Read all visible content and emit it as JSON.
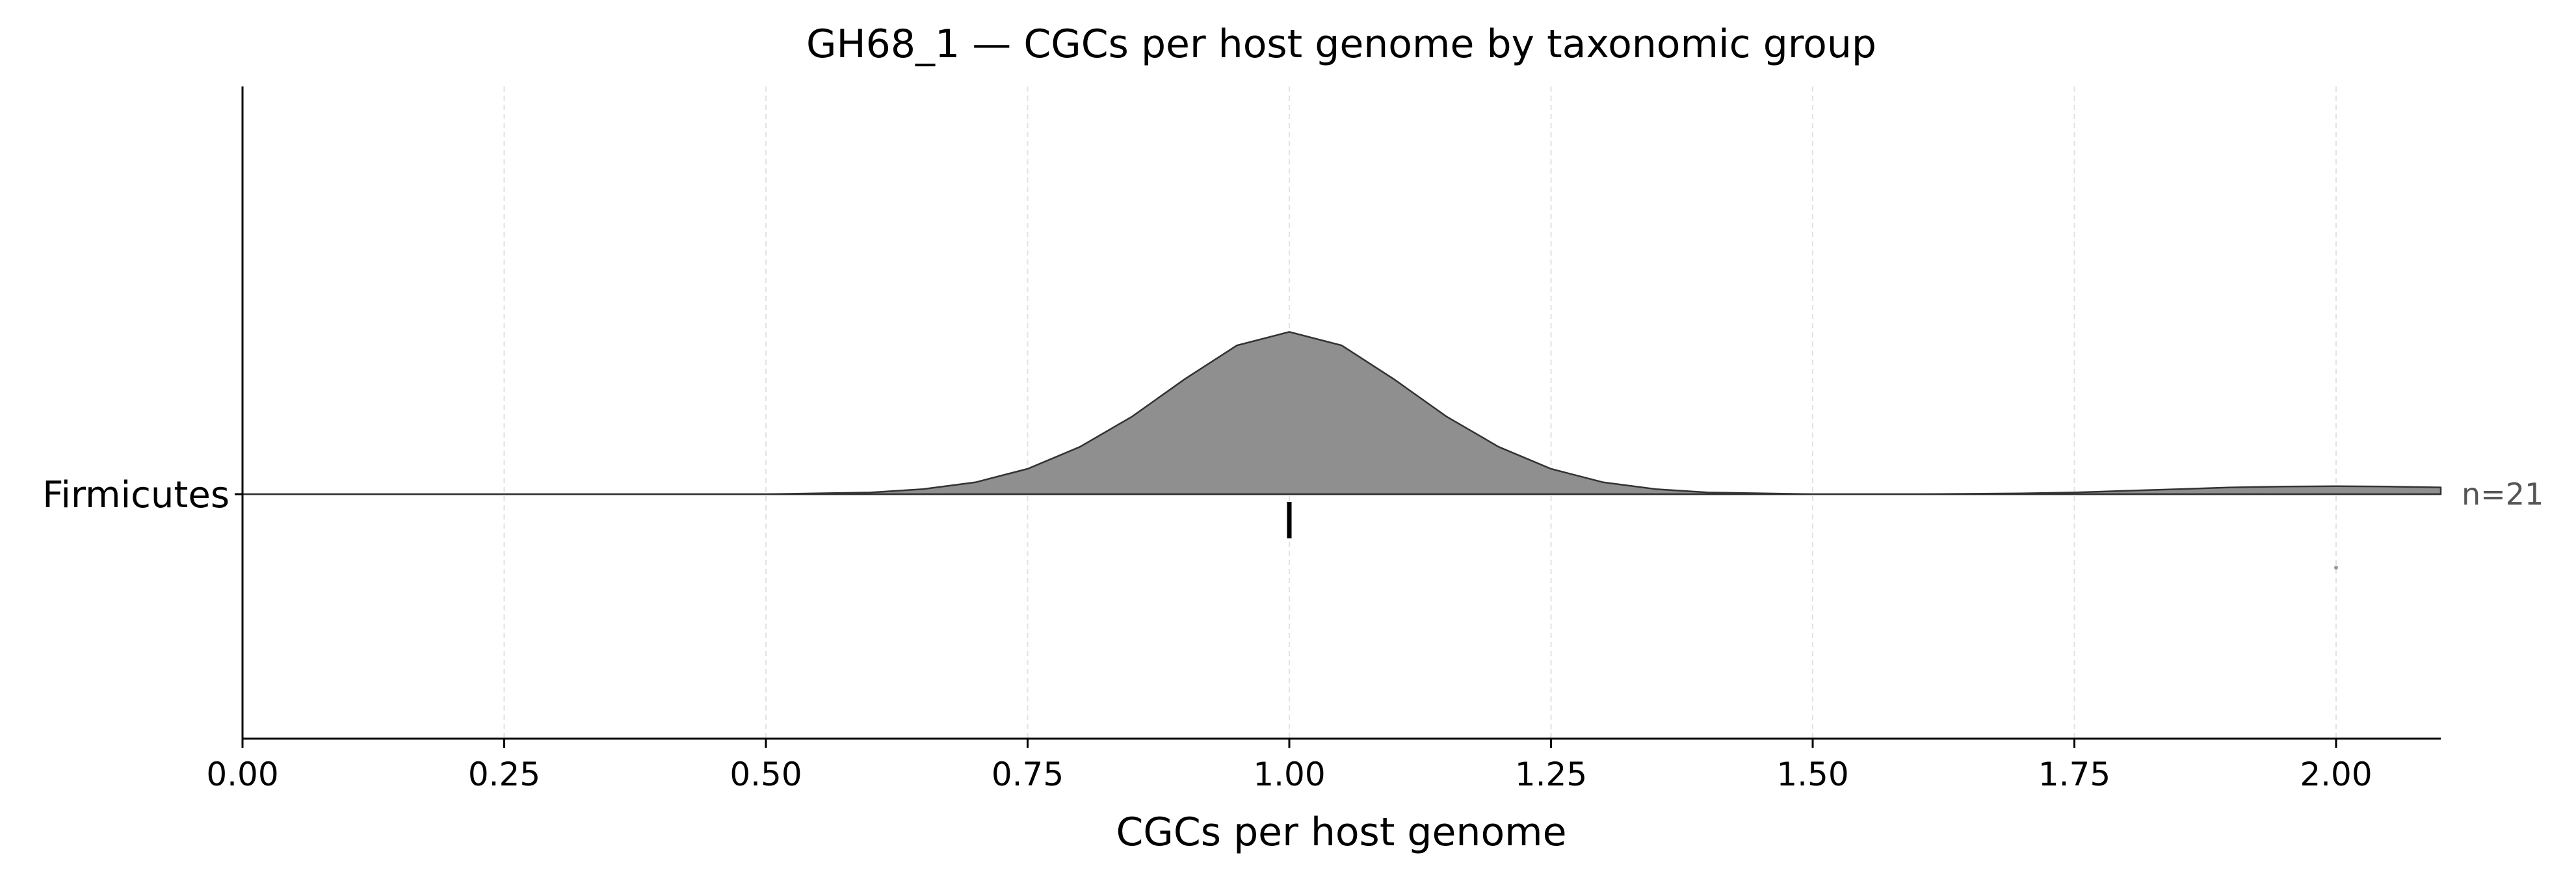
{
  "chart_data": {
    "type": "ridgeline",
    "title": "GH68_1 — CGCs per host genome by taxonomic group",
    "xlabel": "CGCs per host genome",
    "ylabel": "",
    "xlim": [
      0,
      2.1
    ],
    "xticks": [
      "0.00",
      "0.25",
      "0.50",
      "0.75",
      "1.00",
      "1.25",
      "1.50",
      "1.75",
      "2.00"
    ],
    "grid": "vertical-dashed",
    "categories": [
      "Firmicutes"
    ],
    "groups": [
      {
        "name": "Firmicutes",
        "n_label": "n=21",
        "median": 1.0,
        "outliers": [
          2.0
        ],
        "density": {
          "x": [
            0.0,
            0.5,
            0.6,
            0.65,
            0.7,
            0.75,
            0.8,
            0.85,
            0.9,
            0.95,
            1.0,
            1.05,
            1.1,
            1.15,
            1.2,
            1.25,
            1.3,
            1.35,
            1.4,
            1.5,
            1.6,
            1.7,
            1.75,
            1.8,
            1.85,
            1.9,
            1.95,
            2.0,
            2.05,
            2.1
          ],
          "y": [
            0.0,
            0.0,
            0.01,
            0.03,
            0.07,
            0.15,
            0.28,
            0.46,
            0.68,
            0.88,
            0.96,
            0.88,
            0.68,
            0.46,
            0.28,
            0.15,
            0.07,
            0.03,
            0.01,
            0.0,
            0.0,
            0.005,
            0.01,
            0.02,
            0.03,
            0.04,
            0.045,
            0.047,
            0.045,
            0.04
          ]
        },
        "color": "#8f8f8f",
        "edge_color": "#333333"
      }
    ]
  }
}
